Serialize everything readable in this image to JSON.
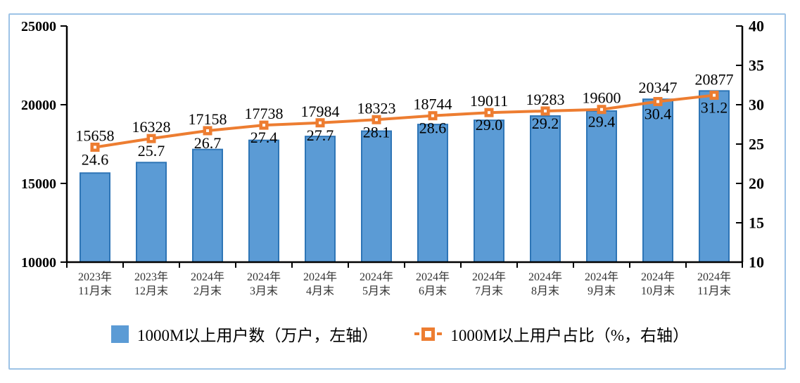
{
  "chart_data": {
    "type": "bar",
    "subtype": "bar-line-combo",
    "grid": false,
    "categories": [
      [
        "2023年",
        "11月末"
      ],
      [
        "2023年",
        "12月末"
      ],
      [
        "2024年",
        "2月末"
      ],
      [
        "2024年",
        "3月末"
      ],
      [
        "2024年",
        "4月末"
      ],
      [
        "2024年",
        "5月末"
      ],
      [
        "2024年",
        "6月末"
      ],
      [
        "2024年",
        "7月末"
      ],
      [
        "2024年",
        "8月末"
      ],
      [
        "2024年",
        "9月末"
      ],
      [
        "2024年",
        "10月末"
      ],
      [
        "2024年",
        "11月末"
      ]
    ],
    "series": [
      {
        "name": "1000M以上用户数（万户，左轴）",
        "type": "bar",
        "axis": "left",
        "color": "#5B9BD5",
        "border_color": "#2E75B6",
        "values": [
          15658,
          16328,
          17158,
          17738,
          17984,
          18323,
          18744,
          19011,
          19283,
          19600,
          20347,
          20877
        ]
      },
      {
        "name": "1000M以上用户占比（%，右轴）",
        "type": "line",
        "axis": "right",
        "color": "#ED7D31",
        "marker": "square-with-white-dot",
        "values": [
          24.6,
          25.7,
          26.7,
          27.4,
          27.7,
          28.1,
          28.6,
          29.0,
          29.2,
          29.4,
          30.4,
          31.2
        ],
        "labels": [
          "24.6",
          "25.7",
          "26.7",
          "27.4",
          "27.7",
          "28.1",
          "28.6",
          "29.0",
          "29.2",
          "29.4",
          "30.4",
          "31.2"
        ]
      }
    ],
    "left_axis": {
      "min": 10000,
      "max": 25000,
      "ticks": [
        "25000",
        "20000",
        "15000",
        "10000"
      ]
    },
    "right_axis": {
      "min": 10,
      "max": 40,
      "ticks": [
        "40",
        "35",
        "30",
        "25",
        "20",
        "15",
        "10"
      ]
    },
    "legend": {
      "position": "bottom",
      "items": [
        {
          "label": "1000M以上用户数（万户，左轴）",
          "swatch": "blue-square"
        },
        {
          "label": "1000M以上用户占比（%，右轴）",
          "swatch": "orange-line-marker"
        }
      ]
    },
    "frame_border_color": "#9DC3E6",
    "axis_color": "#000000"
  }
}
